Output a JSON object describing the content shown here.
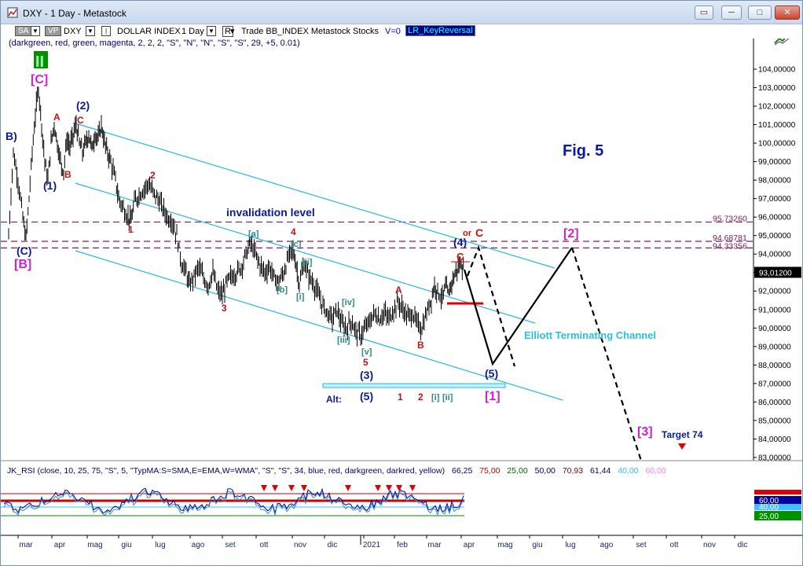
{
  "window": {
    "title": "DXY - 1 Day - Metastock",
    "buttons": [
      "minimize",
      "restore-down",
      "restore",
      "close"
    ]
  },
  "toolbar": {
    "sa": "SA",
    "vp": "VP",
    "symbol": "DXY",
    "name": "DOLLAR INDEX",
    "period": "1 Day",
    "rmode": "R",
    "tail": "Trade  BB_INDEX  Metastock  Stocks",
    "vzero": "V=0",
    "expert": "LR_KeyReversal"
  },
  "params": "(darkgreen,  red,  green,  magenta,  2,  2,  2,  \"S\",  \"N\",  \"N\",  \"S\",  \"S\",  29,  +5,  0.01)",
  "price_axis": {
    "labels": [
      "104,00000",
      "103,00000",
      "102,00000",
      "101,00000",
      "100,00000",
      "99,00000",
      "98,00000",
      "97,00000",
      "96,00000",
      "95,00000",
      "94,00000",
      "93,00000",
      "92,00000",
      "91,00000",
      "90,00000",
      "89,00000",
      "88,00000",
      "87,00000",
      "86,00000",
      "85,00000",
      "84,00000",
      "83,00000"
    ],
    "line_levels": {
      "a": "95,73260",
      "b": "94,68781",
      "c": "94,33356"
    },
    "last_price": "93,01200"
  },
  "annotations": {
    "fig": "Fig. 5",
    "invalidation": "invalidation level",
    "channel": "Elliott Terminating Channel",
    "alt": "Alt:",
    "target": "Target 74",
    "or": "or",
    "C_red_top": "C",
    "C_red_mid": "C",
    "wave_labels": {
      "II": "II",
      "C_big": "[C]",
      "B_left": "B)",
      "C_paren": "(C)",
      "B_big": "[B]",
      "one_paren": "(1)",
      "two_paren": "(2)",
      "A1": "A",
      "C1": "C",
      "B1": "B",
      "two": "2",
      "one": "1",
      "three": "3",
      "four": "4",
      "five": "5",
      "a_sq": "[a]",
      "b_sq": "[b]",
      "c_sq": "[c]",
      "i_sq": "[i]",
      "ii_sq": "[ii]",
      "iii_sq": "[iii]",
      "iv_sq": "[iv]",
      "v_sq": "[v]",
      "A2": "A",
      "B2": "B",
      "three_paren": "(3)",
      "four_paren": "(4)",
      "five_paren": "(5)",
      "five_paren_alt": "(5)",
      "one_alt": "1",
      "two_alt": "2",
      "i_alt": "[i]",
      "ii_alt": "[ii]",
      "one_sq": "[1]",
      "two_sq": "[2]",
      "three_sq": "[3]"
    }
  },
  "x_axis": [
    "mar",
    "apr",
    "mag",
    "giu",
    "lug",
    "ago",
    "set",
    "ott",
    "nov",
    "dic",
    "2021",
    "feb",
    "mar",
    "apr",
    "mag",
    "giu",
    "lug",
    "ago",
    "set",
    "ott",
    "nov",
    "dic"
  ],
  "rsi": {
    "header_main": "JK_RSI    (close,  10,  25,  75,  \"S\",  5,  \"TypMA:S=SMA,E=EMA,W=WMA\",  \"S\",  \"S\",  34,  blue,  red,  darkgreen,  darkred,  yellow)",
    "v1": "66,25",
    "v2": "75,00",
    "v3": "25,00",
    "v4": "50,00",
    "v5": "70,93",
    "v6": "61,44",
    "v7": "40,00",
    "v8": "60,00",
    "axis_labels": {
      "upper": "60,00",
      "mid": "40,00",
      "low": "25,00"
    }
  },
  "colors": {
    "wave_blue": "#0a1aa0",
    "wave_red": "#cc1010",
    "magenta": "#d020d0",
    "teal": "#2a8a8a",
    "cyan_line": "#29b6e6",
    "dashed_purple": "#7a2060"
  }
}
